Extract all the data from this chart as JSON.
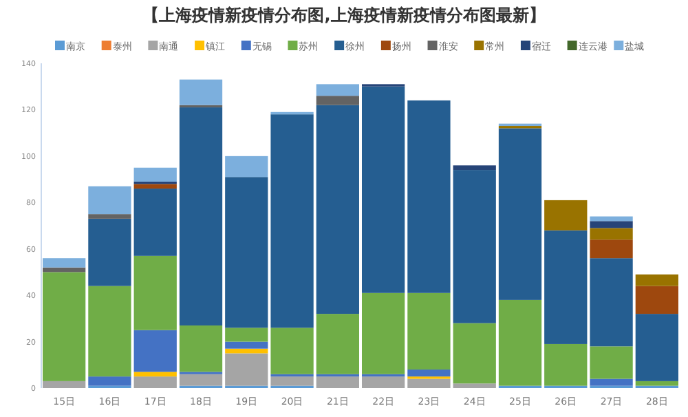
{
  "chart_data": {
    "type": "bar",
    "stacked": true,
    "title": "【上海疫情新疫情分布图,上海疫情新疫情分布图最新】",
    "categories": [
      "15日",
      "16日",
      "17日",
      "18日",
      "19日",
      "20日",
      "21日",
      "22日",
      "23日",
      "24日",
      "25日",
      "26日",
      "27日",
      "28日"
    ],
    "series": [
      {
        "name": "南京",
        "color": "#5b9bd5",
        "values": [
          0,
          1,
          0,
          1,
          1,
          1,
          0,
          0,
          0,
          0,
          1,
          1,
          1,
          1
        ]
      },
      {
        "name": "泰州",
        "color": "#ed7d31",
        "values": [
          0,
          0,
          0,
          0,
          0,
          0,
          0,
          0,
          0,
          0,
          0,
          0,
          0,
          0
        ]
      },
      {
        "name": "南通",
        "color": "#a5a5a5",
        "values": [
          3,
          0,
          5,
          5,
          14,
          4,
          5,
          5,
          4,
          2,
          0,
          0,
          0,
          0
        ]
      },
      {
        "name": "镇江",
        "color": "#ffc000",
        "values": [
          0,
          0,
          2,
          0,
          2,
          0,
          0,
          0,
          1,
          0,
          0,
          0,
          0,
          0
        ]
      },
      {
        "name": "无锡",
        "color": "#4472c4",
        "values": [
          0,
          4,
          18,
          1,
          3,
          1,
          1,
          1,
          3,
          0,
          0,
          0,
          3,
          0
        ]
      },
      {
        "name": "苏州",
        "color": "#70ad47",
        "values": [
          47,
          39,
          32,
          20,
          6,
          20,
          26,
          35,
          33,
          26,
          37,
          18,
          14,
          2
        ]
      },
      {
        "name": "徐州",
        "color": "#255e91",
        "values": [
          0,
          29,
          29,
          94,
          65,
          92,
          90,
          89,
          83,
          66,
          74,
          49,
          38,
          29
        ]
      },
      {
        "name": "扬州",
        "color": "#9e480e",
        "values": [
          0,
          0,
          2,
          0,
          0,
          0,
          0,
          0,
          0,
          0,
          0,
          0,
          8,
          12
        ]
      },
      {
        "name": "淮安",
        "color": "#636363",
        "values": [
          2,
          2,
          0,
          1,
          0,
          0,
          4,
          0,
          0,
          0,
          0,
          0,
          0,
          0
        ]
      },
      {
        "name": "常州",
        "color": "#997300",
        "values": [
          0,
          0,
          0,
          0,
          0,
          0,
          0,
          0,
          0,
          0,
          1,
          13,
          5,
          5
        ]
      },
      {
        "name": "宿迁",
        "color": "#264478",
        "values": [
          0,
          0,
          1,
          0,
          0,
          0,
          0,
          1,
          0,
          2,
          0,
          0,
          3,
          0
        ]
      },
      {
        "name": "连云港",
        "color": "#43682b",
        "values": [
          0,
          0,
          0,
          0,
          0,
          0,
          0,
          0,
          0,
          0,
          0,
          0,
          0,
          0
        ]
      },
      {
        "name": "盐城",
        "color": "#7cafdd",
        "values": [
          4,
          12,
          6,
          11,
          9,
          1,
          5,
          0,
          0,
          0,
          1,
          0,
          2,
          0
        ]
      }
    ],
    "ylim": [
      0,
      140
    ],
    "yticks": [
      0,
      20,
      40,
      60,
      80,
      100,
      120,
      140
    ],
    "legend": "top",
    "grid": false
  }
}
